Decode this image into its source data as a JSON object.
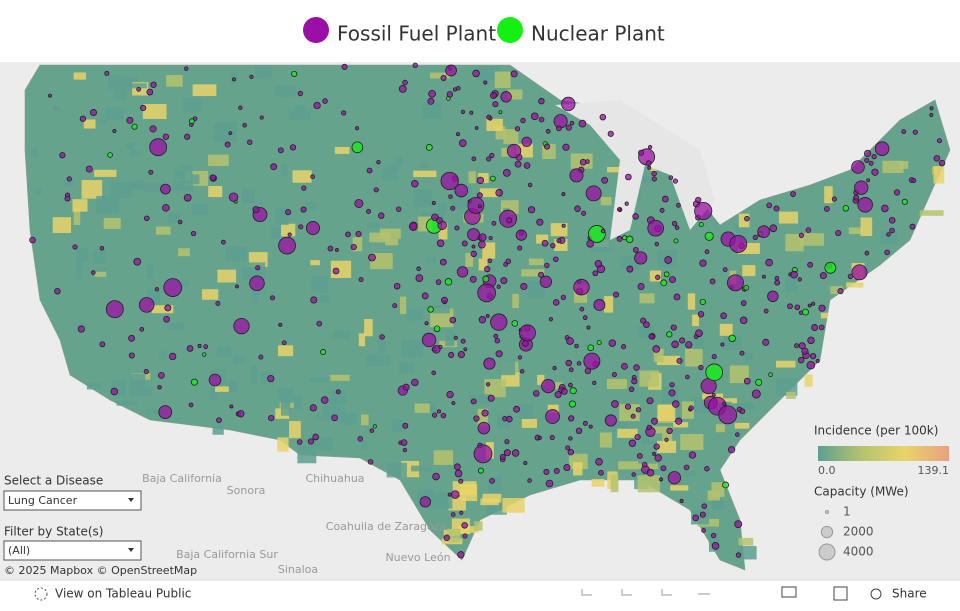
{
  "legend": {
    "items": [
      {
        "label": "Fossil Fuel Plant",
        "color": "#9b0fa6"
      },
      {
        "label": "Nuclear Plant",
        "color": "#14f014"
      }
    ]
  },
  "incidence": {
    "title": "Incidence (per 100k)",
    "min": {
      "value": 0,
      "label": "0.0"
    },
    "max": 139.1,
    "colors": [
      "#5e9f90",
      "#b5c36f",
      "#e9d46a",
      "#e8a07e"
    ]
  },
  "capacity": {
    "title": "Capacity (MWe)",
    "sizes": [
      1,
      2000,
      4000
    ]
  },
  "filters": [
    {
      "label": "Select a Disease",
      "value": "Lung Cancer"
    },
    {
      "label": "Filter by State(s)",
      "value": "(All)"
    }
  ],
  "map_labels": [
    "Baja California",
    "Sonora",
    "Chihuahua",
    "Coahuila de Zaragoza",
    "Baja California Sur",
    "Nuevo León",
    "Sinaloa"
  ],
  "attribution": "© 2025 Mapbox © OpenStreetMap",
  "toolbar": {
    "view": "View on Tableau Public",
    "share": "Share"
  }
}
